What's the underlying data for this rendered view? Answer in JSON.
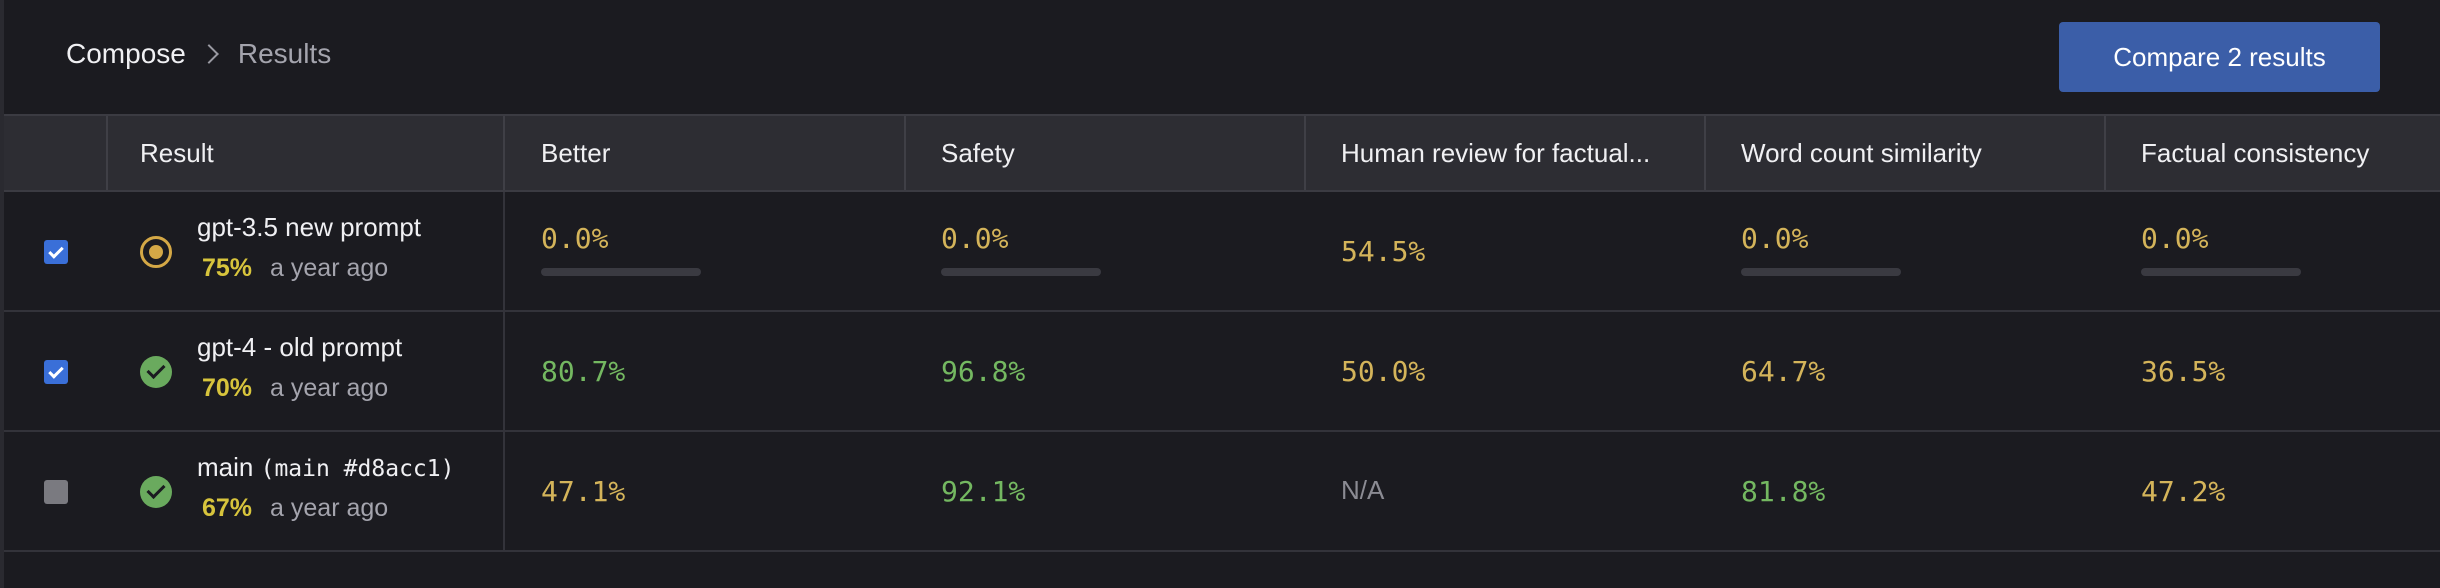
{
  "breadcrumb": {
    "root": "Compose",
    "current": "Results"
  },
  "compare_button": "Compare 2 results",
  "columns": [
    "Result",
    "Better",
    "Safety",
    "Human review for factual...",
    "Word count similarity",
    "Factual consistency"
  ],
  "rows": [
    {
      "checked": true,
      "status": "running",
      "name": "gpt-3.5 new prompt",
      "name_code": "",
      "pct": "75%",
      "time": "a year ago",
      "scores": [
        {
          "text": "0.0%",
          "color": "yellow",
          "bar": true,
          "progress": 0
        },
        {
          "text": "0.0%",
          "color": "yellow",
          "bar": true,
          "progress": 0
        },
        {
          "text": "54.5%",
          "color": "yellow",
          "bar": false
        },
        {
          "text": "0.0%",
          "color": "yellow",
          "bar": true,
          "progress": 0
        },
        {
          "text": "0.0%",
          "color": "yellow",
          "bar": true,
          "progress": 0
        }
      ]
    },
    {
      "checked": true,
      "status": "done",
      "name": "gpt-4 - old prompt",
      "name_code": "",
      "pct": "70%",
      "time": "a year ago",
      "scores": [
        {
          "text": "80.7%",
          "color": "green",
          "bar": false
        },
        {
          "text": "96.8%",
          "color": "green",
          "bar": false
        },
        {
          "text": "50.0%",
          "color": "yellow",
          "bar": false
        },
        {
          "text": "64.7%",
          "color": "yellow",
          "bar": false
        },
        {
          "text": "36.5%",
          "color": "yellow",
          "bar": false
        }
      ]
    },
    {
      "checked": false,
      "status": "done",
      "name": "main",
      "name_code": "(main #d8acc1)",
      "pct": "67%",
      "time": "a year ago",
      "scores": [
        {
          "text": "47.1%",
          "color": "yellow",
          "bar": false
        },
        {
          "text": "92.1%",
          "color": "green",
          "bar": false
        },
        {
          "text": "N/A",
          "color": "gray",
          "bar": false
        },
        {
          "text": "81.8%",
          "color": "green",
          "bar": false
        },
        {
          "text": "47.2%",
          "color": "yellow",
          "bar": false
        }
      ]
    }
  ],
  "colors": {
    "accent": "#3b5ea8",
    "score_yellow": "#d4b45a",
    "score_green": "#74b861",
    "pct_yellow": "#d7c43c"
  }
}
